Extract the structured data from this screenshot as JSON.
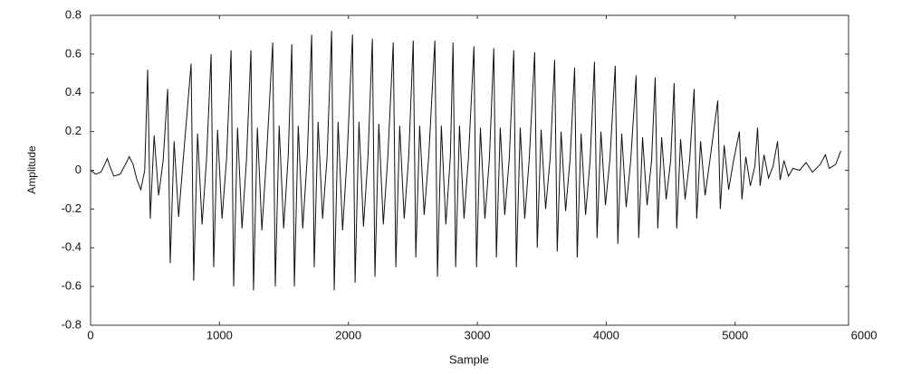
{
  "chart_data": {
    "type": "line",
    "x_label": "Sample",
    "y_label": "Amplitude",
    "xlim": [
      0,
      5880
    ],
    "ylim": [
      -0.8,
      0.8
    ],
    "xticks": [
      0,
      1000,
      2000,
      3000,
      4000,
      5000,
      6000
    ],
    "yticks": [
      0.8,
      0.6,
      0.4,
      0.2,
      0,
      -0.2,
      -0.4,
      -0.6,
      -0.8
    ],
    "color": "#111111",
    "x": [
      0,
      40,
      80,
      110,
      130,
      150,
      180,
      230,
      270,
      300,
      330,
      360,
      390,
      420,
      443,
      463,
      493,
      528,
      563,
      598,
      618,
      648,
      683,
      718,
      780,
      800,
      830,
      865,
      900,
      935,
      955,
      985,
      1020,
      1055,
      1090,
      1110,
      1140,
      1175,
      1210,
      1244,
      1264,
      1294,
      1329,
      1364,
      1413,
      1433,
      1463,
      1498,
      1533,
      1561,
      1581,
      1611,
      1646,
      1681,
      1715,
      1735,
      1765,
      1800,
      1835,
      1870,
      1890,
      1920,
      1955,
      1990,
      2032,
      2052,
      2082,
      2117,
      2152,
      2186,
      2206,
      2236,
      2271,
      2306,
      2348,
      2368,
      2398,
      2433,
      2468,
      2503,
      2523,
      2553,
      2588,
      2623,
      2671,
      2691,
      2721,
      2756,
      2791,
      2812,
      2832,
      2862,
      2897,
      2932,
      2974,
      2994,
      3024,
      3059,
      3094,
      3128,
      3148,
      3178,
      3213,
      3248,
      3283,
      3303,
      3333,
      3368,
      3403,
      3445,
      3465,
      3495,
      3530,
      3565,
      3600,
      3620,
      3650,
      3685,
      3720,
      3755,
      3775,
      3805,
      3840,
      3875,
      3909,
      3929,
      3959,
      3994,
      4029,
      4070,
      4090,
      4120,
      4155,
      4190,
      4232,
      4252,
      4282,
      4317,
      4352,
      4380,
      4400,
      4430,
      4465,
      4500,
      4527,
      4547,
      4577,
      4612,
      4647,
      4682,
      4702,
      4732,
      4767,
      4802,
      4865,
      4885,
      4915,
      4950,
      4985,
      5033,
      5053,
      5083,
      5118,
      5153,
      5174,
      5194,
      5224,
      5259,
      5294,
      5329,
      5349,
      5379,
      5414,
      5449,
      5500,
      5550,
      5600,
      5660,
      5700,
      5730,
      5780,
      5820
    ],
    "values": [
      0,
      -0.02,
      -0.01,
      0.03,
      0.06,
      0.02,
      -0.03,
      -0.02,
      0.03,
      0.07,
      0.03,
      -0.05,
      -0.1,
      0.0,
      0.52,
      -0.25,
      0.18,
      -0.13,
      0.05,
      0.42,
      -0.48,
      0.15,
      -0.24,
      0.05,
      0.55,
      -0.57,
      0.19,
      -0.28,
      0.06,
      0.6,
      -0.5,
      0.21,
      -0.25,
      0.06,
      0.62,
      -0.6,
      0.22,
      -0.3,
      0.06,
      0.62,
      -0.62,
      0.22,
      -0.31,
      0.06,
      0.66,
      -0.6,
      0.23,
      -0.3,
      0.07,
      0.65,
      -0.6,
      0.23,
      -0.3,
      0.07,
      0.7,
      -0.5,
      0.25,
      -0.25,
      0.07,
      0.72,
      -0.62,
      0.25,
      -0.31,
      0.07,
      0.7,
      -0.58,
      0.25,
      -0.29,
      0.07,
      0.68,
      -0.55,
      0.24,
      -0.28,
      0.07,
      0.66,
      -0.5,
      0.23,
      -0.25,
      0.07,
      0.67,
      -0.45,
      0.23,
      -0.23,
      0.07,
      0.67,
      -0.55,
      0.23,
      -0.28,
      0.07,
      0.66,
      -0.5,
      0.23,
      -0.25,
      0.07,
      0.64,
      -0.5,
      0.22,
      -0.25,
      0.06,
      0.63,
      -0.45,
      0.22,
      -0.23,
      0.06,
      0.62,
      -0.5,
      0.22,
      -0.25,
      0.06,
      0.61,
      -0.4,
      0.21,
      -0.2,
      0.06,
      0.57,
      -0.42,
      0.2,
      -0.21,
      0.06,
      0.53,
      -0.45,
      0.19,
      -0.23,
      0.05,
      0.56,
      -0.35,
      0.2,
      -0.18,
      0.06,
      0.54,
      -0.38,
      0.19,
      -0.19,
      0.05,
      0.49,
      -0.35,
      0.17,
      -0.18,
      0.05,
      0.48,
      -0.3,
      0.17,
      -0.15,
      0.05,
      0.45,
      -0.3,
      0.16,
      -0.15,
      0.05,
      0.42,
      -0.25,
      0.15,
      -0.13,
      0.04,
      0.36,
      -0.2,
      0.13,
      -0.1,
      0.04,
      0.2,
      -0.15,
      0.07,
      -0.08,
      0.02,
      0.22,
      -0.08,
      0.08,
      -0.04,
      0.02,
      0.15,
      -0.05,
      0.05,
      -0.03,
      0.01,
      0.0,
      0.04,
      -0.01,
      0.03,
      0.08,
      0.01,
      0.03,
      0.1
    ]
  }
}
